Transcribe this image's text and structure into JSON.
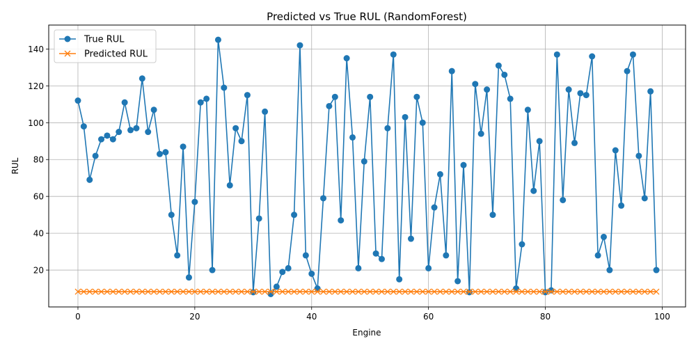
{
  "chart_data": {
    "type": "line",
    "title": "Predicted vs True RUL (RandomForest)",
    "xlabel": "Engine",
    "ylabel": "RUL",
    "xlim": [
      -5,
      104
    ],
    "ylim": [
      0,
      153
    ],
    "xticks": [
      0,
      20,
      40,
      60,
      80,
      100
    ],
    "yticks": [
      20,
      40,
      60,
      80,
      100,
      120,
      140
    ],
    "grid": true,
    "legend_position": "top-left",
    "series": [
      {
        "name": "True RUL",
        "color": "#1f77b4",
        "marker": "circle",
        "values": [
          112,
          98,
          69,
          82,
          91,
          93,
          91,
          95,
          111,
          96,
          97,
          124,
          95,
          107,
          83,
          84,
          50,
          28,
          87,
          16,
          57,
          111,
          113,
          20,
          145,
          119,
          66,
          97,
          90,
          115,
          8,
          48,
          106,
          7,
          11,
          19,
          21,
          50,
          142,
          28,
          18,
          10,
          59,
          109,
          114,
          47,
          135,
          92,
          21,
          79,
          114,
          29,
          26,
          97,
          137,
          15,
          103,
          37,
          114,
          100,
          21,
          54,
          72,
          28,
          128,
          14,
          77,
          8,
          121,
          94,
          118,
          50,
          131,
          126,
          113,
          10,
          34,
          107,
          63,
          90,
          8,
          9,
          137,
          58,
          118,
          89,
          116,
          115,
          136,
          28,
          38,
          20,
          85,
          55,
          128,
          137,
          82,
          59,
          117,
          20
        ]
      },
      {
        "name": "Predicted RUL",
        "color": "#ff7f0e",
        "marker": "x",
        "values": [
          8.3,
          8.3,
          8.3,
          8.3,
          8.3,
          8.3,
          8.3,
          8.3,
          8.3,
          8.3,
          8.3,
          8.3,
          8.3,
          8.3,
          8.3,
          8.3,
          8.3,
          8.3,
          8.3,
          8.3,
          8.3,
          8.3,
          8.3,
          8.3,
          8.3,
          8.3,
          8.3,
          8.3,
          8.3,
          8.3,
          8.3,
          8.3,
          8.3,
          8.3,
          8.3,
          8.3,
          8.3,
          8.3,
          8.3,
          8.3,
          8.3,
          8.3,
          8.3,
          8.3,
          8.3,
          8.3,
          8.3,
          8.3,
          8.3,
          8.3,
          8.3,
          8.3,
          8.3,
          8.3,
          8.3,
          8.3,
          8.3,
          8.3,
          8.3,
          8.3,
          8.3,
          8.3,
          8.3,
          8.3,
          8.3,
          8.3,
          8.3,
          8.3,
          8.3,
          8.3,
          8.3,
          8.3,
          8.3,
          8.3,
          8.3,
          8.3,
          8.3,
          8.3,
          8.3,
          8.3,
          8.3,
          8.3,
          8.3,
          8.3,
          8.3,
          8.3,
          8.3,
          8.3,
          8.3,
          8.3,
          8.3,
          8.3,
          8.3,
          8.3,
          8.3,
          8.3,
          8.3,
          8.3,
          8.3,
          8.3
        ]
      }
    ]
  }
}
